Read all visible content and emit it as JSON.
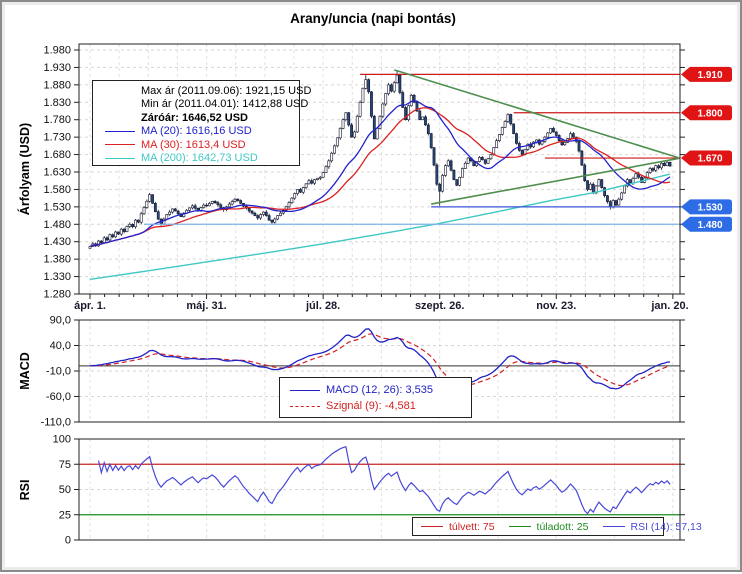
{
  "title": "Arany/uncia (napi bontás)",
  "price_panel": {
    "ylabel": "Árfolyam (USD)",
    "legend": {
      "max": "Max ár (2011.09.06): 1921,15 USD",
      "min": "Min ár (2011.04.01): 1412,88 USD",
      "close": "Záróár: 1646,52 USD",
      "ma20": "MA (20): 1616,16 USD",
      "ma30": "MA (30): 1613,4 USD",
      "ma200": "MA (200): 1642,73 USD"
    }
  },
  "macd_panel": {
    "ylabel": "MACD",
    "legend": {
      "macd": "MACD (12, 26): 3,535",
      "signal": "Szignál (9): -4,581"
    }
  },
  "rsi_panel": {
    "ylabel": "RSI",
    "legend": {
      "overbought": "túlvett: 75",
      "oversold": "túladott: 25",
      "rsi": "RSI (14): 57,13"
    }
  },
  "chart_data": {
    "type": "candlestick",
    "title": "Arany/uncia (napi bontás)",
    "x_axis": {
      "tick_labels": [
        "ápr. 1.",
        "máj. 31.",
        "júl. 28.",
        "szept. 26.",
        "nov. 23.",
        "jan. 20."
      ],
      "tick_indices": [
        0,
        41,
        82,
        123,
        164,
        204
      ]
    },
    "price_axis": {
      "min": 1280,
      "max": 1980,
      "step": 50
    },
    "closes": [
      1416,
      1424,
      1418,
      1432,
      1427,
      1441,
      1435,
      1450,
      1444,
      1458,
      1452,
      1466,
      1459,
      1474,
      1480,
      1473,
      1492,
      1486,
      1510,
      1528,
      1546,
      1565,
      1540,
      1516,
      1495,
      1481,
      1495,
      1508,
      1515,
      1524,
      1518,
      1510,
      1502,
      1512,
      1520,
      1527,
      1533,
      1526,
      1519,
      1528,
      1535,
      1533,
      1540,
      1546,
      1542,
      1536,
      1528,
      1522,
      1530,
      1538,
      1545,
      1552,
      1548,
      1540,
      1532,
      1526,
      1518,
      1512,
      1505,
      1498,
      1508,
      1515,
      1505,
      1492,
      1486,
      1495,
      1505,
      1512,
      1520,
      1530,
      1542,
      1555,
      1568,
      1580,
      1572,
      1585,
      1596,
      1605,
      1598,
      1608,
      1612,
      1615,
      1628,
      1645,
      1662,
      1684,
      1705,
      1728,
      1755,
      1780,
      1800,
      1765,
      1730,
      1745,
      1790,
      1830,
      1870,
      1895,
      1860,
      1790,
      1725,
      1755,
      1790,
      1825,
      1855,
      1880,
      1862,
      1886,
      1908,
      1858,
      1815,
      1780,
      1820,
      1850,
      1830,
      1805,
      1780,
      1788,
      1765,
      1740,
      1700,
      1650,
      1595,
      1575,
      1620,
      1648,
      1662,
      1635,
      1608,
      1592,
      1615,
      1640,
      1655,
      1670,
      1662,
      1648,
      1660,
      1672,
      1665,
      1655,
      1668,
      1680,
      1700,
      1720,
      1738,
      1758,
      1775,
      1795,
      1768,
      1740,
      1712,
      1692,
      1680,
      1695,
      1710,
      1702,
      1716,
      1722,
      1710,
      1718,
      1730,
      1742,
      1755,
      1745,
      1735,
      1720,
      1708,
      1715,
      1726,
      1740,
      1730,
      1718,
      1690,
      1650,
      1605,
      1580,
      1595,
      1570,
      1590,
      1608,
      1585,
      1562,
      1545,
      1530,
      1548,
      1535,
      1552,
      1570,
      1590,
      1608,
      1598,
      1612,
      1625,
      1615,
      1600,
      1613,
      1628,
      1640,
      1635,
      1648,
      1642,
      1655,
      1648,
      1658,
      1647
    ],
    "wick_overrides": {
      "highs": [
        [
          97,
          1910
        ],
        [
          108,
          1921.15
        ]
      ],
      "lows": [
        [
          0,
          1412.88
        ],
        [
          123,
          1533
        ],
        [
          183,
          1522
        ]
      ]
    },
    "stats": {
      "max_price": 1921.15,
      "max_date": "2011.09.06",
      "min_price": 1412.88,
      "min_date": "2011.04.01",
      "close": 1646.52,
      "ma20": 1616.16,
      "ma30": 1613.4,
      "ma200": 1642.73
    },
    "ma": {
      "ma20_window": 20,
      "ma30_window": 30,
      "ma200_anchors": [
        [
          0,
          1322
        ],
        [
          20,
          1346
        ],
        [
          41,
          1372
        ],
        [
          62,
          1398
        ],
        [
          82,
          1424
        ],
        [
          102,
          1452
        ],
        [
          122,
          1481
        ],
        [
          142,
          1514
        ],
        [
          162,
          1548
        ],
        [
          178,
          1572
        ],
        [
          190,
          1596
        ],
        [
          198,
          1612
        ],
        [
          204,
          1624
        ]
      ]
    },
    "levels": [
      {
        "price": 1910,
        "from_idx": 95,
        "color": "#cc1a1a",
        "flag": "1.910",
        "flag_color": "#e01414"
      },
      {
        "price": 1800,
        "from_idx": 149,
        "color": "#cc1a1a",
        "flag": "1.800",
        "flag_color": "#e01414"
      },
      {
        "price": 1670,
        "from_idx": 160,
        "color": "#cc1a1a",
        "flag": "1.670",
        "flag_color": "#e01414"
      },
      {
        "price": 1530,
        "from_idx": 120,
        "color": "#3c55d8",
        "flag": "1.530",
        "flag_color": "#2e6ce6"
      },
      {
        "price": 1480,
        "from_idx": 19,
        "color": "#7fb3e8",
        "flag": "1.480",
        "flag_color": "#2e6ce6"
      }
    ],
    "trendlines": [
      {
        "from": [
          107,
          1923
        ],
        "to": [
          207,
          1671
        ],
        "color": "#4e8f4e"
      },
      {
        "from": [
          120,
          1538
        ],
        "to": [
          207,
          1669
        ],
        "color": "#4e8f4e"
      }
    ],
    "macd": {
      "fast": 12,
      "slow": 26,
      "signal": 9,
      "yticks": [
        90,
        40,
        -10,
        -60,
        -110
      ],
      "ylim": [
        -110,
        90
      ],
      "last": 3.535,
      "signal_last": -4.581
    },
    "rsi": {
      "period": 14,
      "yticks": [
        100,
        75,
        50,
        25,
        0
      ],
      "overbought": 75,
      "oversold": 25,
      "last": 57.13
    },
    "colors": {
      "up": "#ffffff",
      "down": "#23497c",
      "outline": "#14142c",
      "ma20": "#2222cc",
      "ma30": "#dd2020",
      "ma200": "#3fc8c4",
      "macd": "#2222c8",
      "signal": "#d42222",
      "rsi": "#4848d8",
      "overbought": "#cc2222",
      "oversold": "#1e8c1e",
      "grid": "#d6d6d6"
    }
  }
}
